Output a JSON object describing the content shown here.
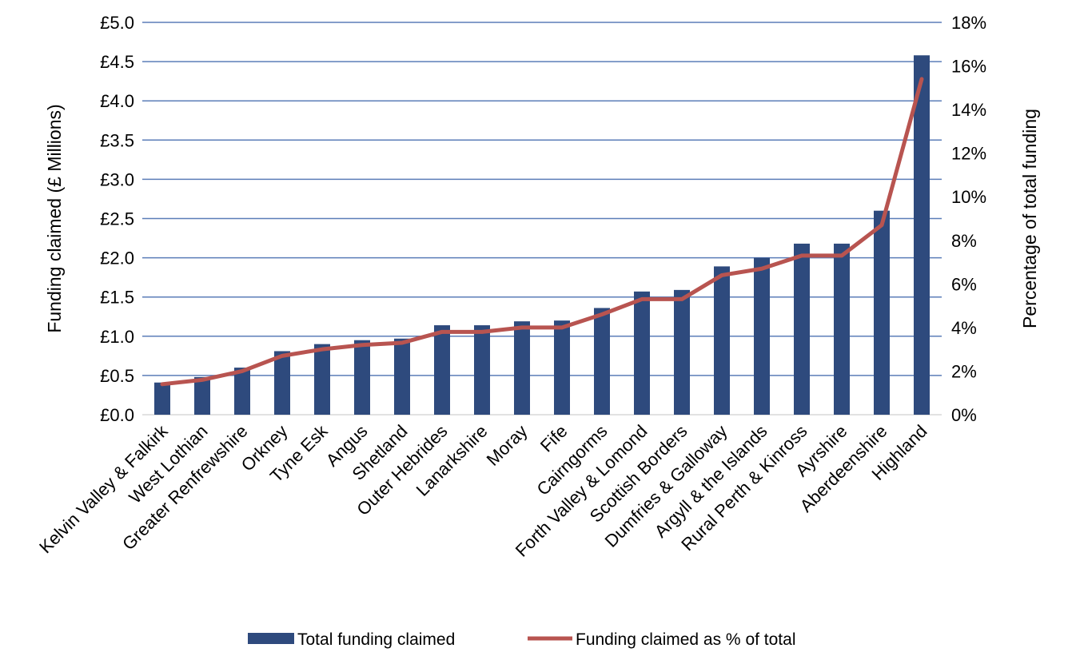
{
  "chart_data": {
    "type": "bar+line",
    "categories": [
      "Kelvin Valley & Falkirk",
      "West Lothian",
      "Greater Renfrewshire",
      "Orkney",
      "Tyne Esk",
      "Angus",
      "Shetland",
      "Outer Hebrides",
      "Lanarkshire",
      "Moray",
      "Fife",
      "Cairngorms",
      "Forth Valley & Lomond",
      "Scottish Borders",
      "Dumfries & Galloway",
      "Argyll & the Islands",
      "Rural Perth & Kinross",
      "Ayrshire",
      "Aberdeenshire",
      "Highland"
    ],
    "series": [
      {
        "name": "Total funding claimed",
        "type": "bar",
        "axis": "left",
        "color": "#2E4A7D",
        "values": [
          0.41,
          0.48,
          0.6,
          0.81,
          0.9,
          0.95,
          0.97,
          1.14,
          1.14,
          1.19,
          1.2,
          1.36,
          1.57,
          1.59,
          1.89,
          2.0,
          2.18,
          2.18,
          2.6,
          4.58
        ]
      },
      {
        "name": "Funding claimed as % of total",
        "type": "line",
        "axis": "right",
        "color": "#B85450",
        "values": [
          1.4,
          1.6,
          2.0,
          2.7,
          3.0,
          3.2,
          3.3,
          3.8,
          3.8,
          4.0,
          4.0,
          4.6,
          5.3,
          5.3,
          6.4,
          6.7,
          7.3,
          7.3,
          8.7,
          15.4
        ]
      }
    ],
    "ylabel": "Funding claimed (£ Millions)",
    "y2label": "Percentage of total funding",
    "ylim": [
      0,
      5
    ],
    "y2lim": [
      0,
      18
    ],
    "yticks": [
      "£0.0",
      "£0.5",
      "£1.0",
      "£1.5",
      "£2.0",
      "£2.5",
      "£3.0",
      "£3.5",
      "£4.0",
      "£4.5",
      "£5.0"
    ],
    "y2ticks": [
      "0%",
      "2%",
      "4%",
      "6%",
      "8%",
      "10%",
      "12%",
      "14%",
      "16%",
      "18%"
    ],
    "grid": true,
    "gridColor": "#5B7DB8",
    "legend": "bottom"
  }
}
